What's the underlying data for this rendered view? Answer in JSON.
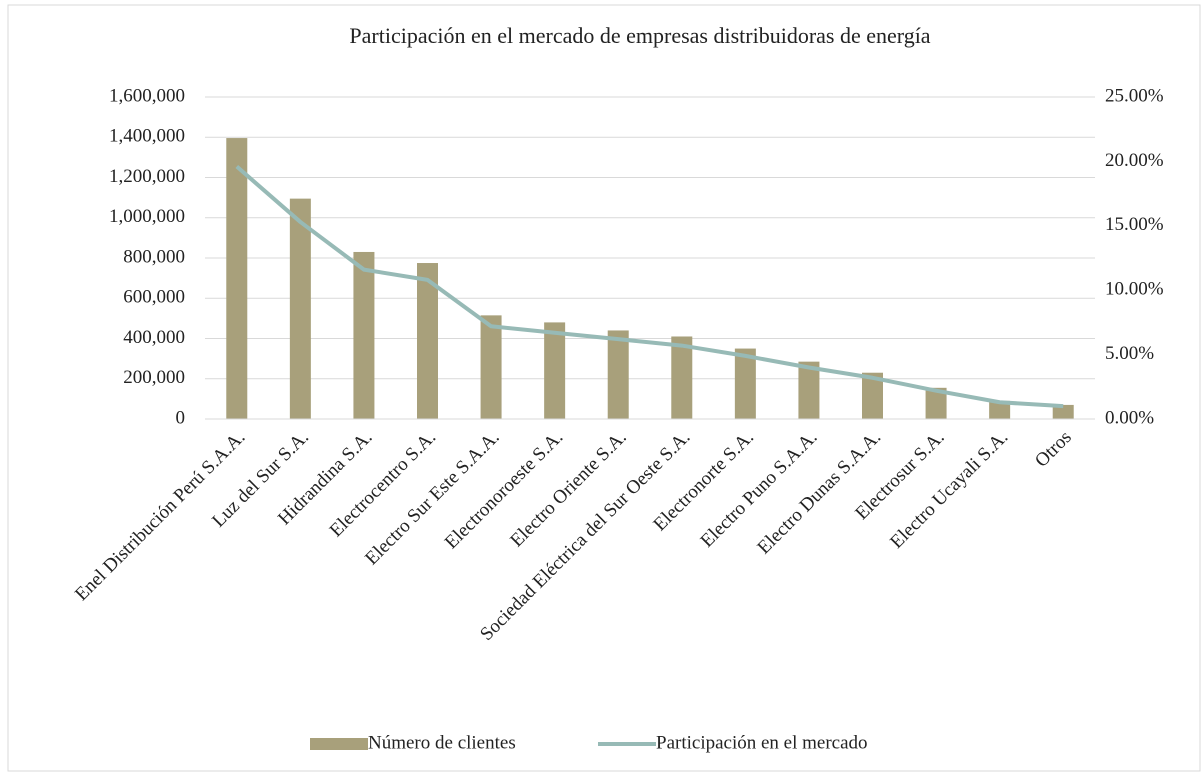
{
  "chart_data": {
    "type": "bar-line",
    "title": "Participación en el mercado de empresas distribuidoras de energía",
    "categories": [
      "Enel Distribución Perú S.A.A.",
      "Luz del Sur S.A.",
      "Hidrandina S.A.",
      "Electrocentro S.A.",
      "Electro Sur Este S.A.A.",
      "Electronoroeste S.A.",
      "Electro Oriente S.A.",
      "Sociedad Eléctrica del Sur Oeste S.A.",
      "Electronorte S.A.",
      "Electro Puno S.A.A.",
      "Electro Dunas S.A.A.",
      "Electrosur S.A.",
      "Electro Ucayali S.A.",
      "Otros"
    ],
    "series": [
      {
        "name": "Número de clientes",
        "type": "bar",
        "color": "#a8a07b",
        "values": [
          1396000,
          1095000,
          830000,
          775000,
          515000,
          480000,
          440000,
          410000,
          350000,
          285000,
          230000,
          155000,
          90000,
          70000
        ]
      },
      {
        "name": "Participación en el mercado",
        "type": "line",
        "axis": "y2",
        "color": "#97bab6",
        "values": [
          19.6,
          15.3,
          11.6,
          10.8,
          7.2,
          6.7,
          6.2,
          5.7,
          4.9,
          4.0,
          3.2,
          2.2,
          1.3,
          1.0
        ]
      }
    ],
    "ylim": [
      0,
      1600000
    ],
    "yticks": [
      0,
      {
        "value": 200000,
        "label": "200,000"
      },
      {
        "value": 400000,
        "label": "400,000"
      },
      {
        "value": 600000,
        "label": "600,000"
      },
      {
        "value": 800000,
        "label": "800,000"
      },
      {
        "value": 1000000,
        "label": "1,000,000"
      },
      {
        "value": 1200000,
        "label": "1,200,000"
      },
      {
        "value": 1400000,
        "label": "1,400,000"
      },
      {
        "value": 1600000,
        "label": "1,600,000"
      }
    ],
    "y2lim": [
      0,
      25
    ],
    "y2ticks": [
      {
        "value": 0,
        "label": "0.00%"
      },
      {
        "value": 5,
        "label": "5.00%"
      },
      {
        "value": 10,
        "label": "10.00%"
      },
      {
        "value": 15,
        "label": "15.00%"
      },
      {
        "value": 20,
        "label": "20.00%"
      },
      {
        "value": 25,
        "label": "25.00%"
      }
    ],
    "grid": true,
    "legend": "bottom"
  }
}
